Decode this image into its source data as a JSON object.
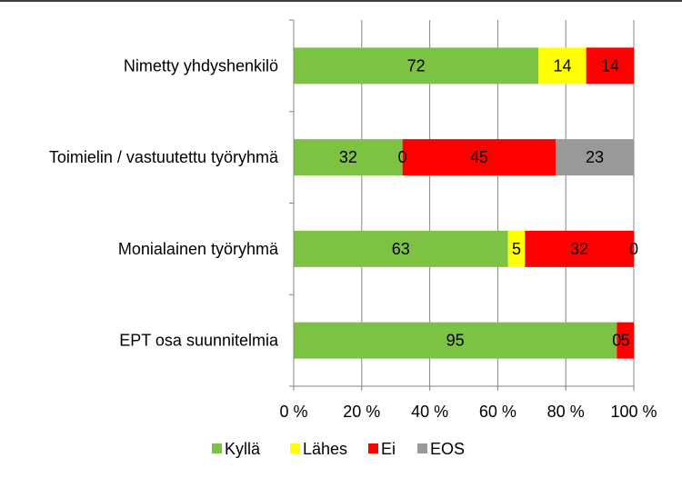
{
  "chart_data": {
    "type": "bar",
    "orientation": "horizontal",
    "stacked": "percent",
    "categories": [
      "Nimetty yhdyshenkilö",
      "Toimielin / vastuutettu työryhmä",
      "Monialainen työryhmä",
      "EPT osa suunnitelmia"
    ],
    "series": [
      {
        "name": "Kyllä",
        "color": "#7DC242",
        "values": [
          72,
          32,
          63,
          95
        ]
      },
      {
        "name": "Lähes",
        "color": "#FFFF00",
        "values": [
          14,
          0,
          5,
          0
        ]
      },
      {
        "name": "Ei",
        "color": "#FF0000",
        "values": [
          14,
          45,
          32,
          5
        ]
      },
      {
        "name": "EOS",
        "color": "#999999",
        "values": [
          0,
          23,
          0,
          0
        ]
      }
    ],
    "data_labels": [
      [
        "72",
        "14",
        "14",
        ""
      ],
      [
        "32",
        "0",
        "45",
        "23"
      ],
      [
        "63",
        "5",
        "32",
        "0"
      ],
      [
        "95",
        "0",
        "5",
        ""
      ]
    ],
    "xticks": [
      "0 %",
      "20 %",
      "40 %",
      "60 %",
      "80 %",
      "100 %"
    ],
    "xlim": [
      0,
      100
    ],
    "grid": true,
    "legend_position": "bottom",
    "title": "",
    "xlabel": "",
    "ylabel": ""
  }
}
